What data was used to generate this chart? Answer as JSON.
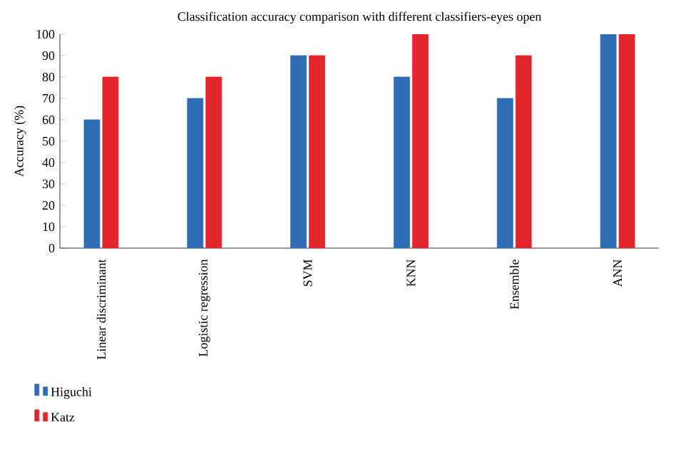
{
  "chart_data": {
    "type": "bar",
    "title": "Classification accuracy comparison with different classifiers-eyes open",
    "ylabel": "Accuracy (%)",
    "categories": [
      "Linear discriminant",
      "Logistic regression",
      "SVM",
      "KNN",
      "Ensemble",
      "ANN"
    ],
    "series": [
      {
        "name": "Higuchi",
        "color": "#2f6db5",
        "values": [
          60,
          70,
          90,
          80,
          70,
          100
        ]
      },
      {
        "name": "Katz",
        "color": "#e3262c",
        "values": [
          80,
          80,
          90,
          100,
          90,
          100
        ]
      }
    ],
    "ylim": [
      0,
      100
    ],
    "yticks": [
      0,
      10,
      20,
      30,
      40,
      50,
      60,
      70,
      80,
      90,
      100
    ],
    "grid": false,
    "legend": "bottom left"
  }
}
